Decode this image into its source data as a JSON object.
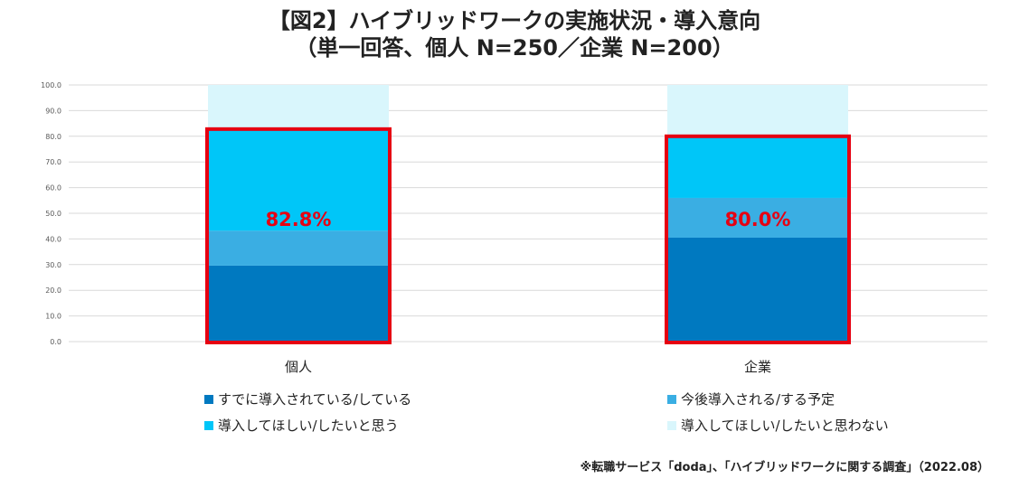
{
  "title": {
    "line1": "【図2】ハイブリッドワークの実施状況・導入意向",
    "line2": "（単一回答、個人 N=250／企業 N=200）"
  },
  "chart_data": {
    "type": "bar",
    "stacked": true,
    "categories": [
      "個人",
      "企業"
    ],
    "series": [
      {
        "name": "すでに導入されている/している",
        "values": [
          29.6,
          40.5
        ],
        "color": "#0079c0"
      },
      {
        "name": "今後導入される/する予定",
        "values": [
          13.6,
          15.5
        ],
        "color": "#3aaee3"
      },
      {
        "name": "導入してほしい/したいと思う",
        "values": [
          39.6,
          24.0
        ],
        "color": "#00c6f8"
      },
      {
        "name": "導入してほしい/したいと思わない",
        "values": [
          17.2,
          20.0
        ],
        "color": "#d9f6fc"
      }
    ],
    "highlight_values": [
      82.8,
      80.0
    ],
    "highlight_labels": [
      "82.8%",
      "80.0%"
    ],
    "highlight_color": "#e60012",
    "y_ticks": [
      "0.0",
      "10.0",
      "20.0",
      "30.0",
      "40.0",
      "50.0",
      "60.0",
      "70.0",
      "80.0",
      "90.0",
      "100.0"
    ],
    "ylim": [
      0,
      100
    ],
    "grid": true,
    "legend_position": "bottom"
  },
  "source": "※転職サービス「doda」、「ハイブリッドワークに関する調査」（2022.08）"
}
